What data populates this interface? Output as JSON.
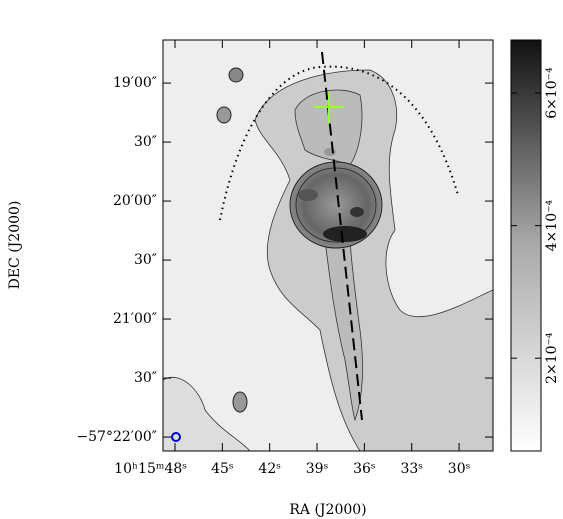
{
  "chart_data": {
    "type": "image",
    "xlabel": "RA (J2000)",
    "ylabel": "DEC (J2000)",
    "xlim": [
      48.76,
      27.85
    ],
    "xticks": [
      {
        "value": 48,
        "label": "10ʰ15ᵐ48ˢ"
      },
      {
        "value": 45,
        "label": "45ˢ"
      },
      {
        "value": 42,
        "label": "42ˢ"
      },
      {
        "value": 39,
        "label": "39ˢ"
      },
      {
        "value": 36,
        "label": "36ˢ"
      },
      {
        "value": 33,
        "label": "33ˢ"
      },
      {
        "value": 30,
        "label": "30ˢ"
      }
    ],
    "ylim": [
      1327.1,
      1118.1
    ],
    "yticks": [
      {
        "value": 1320,
        "label": "−57°22′00″"
      },
      {
        "value": 1290,
        "label": "30″"
      },
      {
        "value": 1260,
        "label": "21′00″"
      },
      {
        "value": 1230,
        "label": "30″"
      },
      {
        "value": 1200,
        "label": "20′00″"
      },
      {
        "value": 1170,
        "label": "30″"
      },
      {
        "value": 1140,
        "label": "19′00″"
      }
    ],
    "clim": [
      6e-05,
      0.00068
    ],
    "cticks": [
      {
        "value": 0.0002,
        "label": "2×10⁻⁴"
      },
      {
        "value": 0.0004,
        "label": "4×10⁻⁴"
      },
      {
        "value": 0.0006,
        "label": "6×10⁻⁴"
      }
    ]
  }
}
